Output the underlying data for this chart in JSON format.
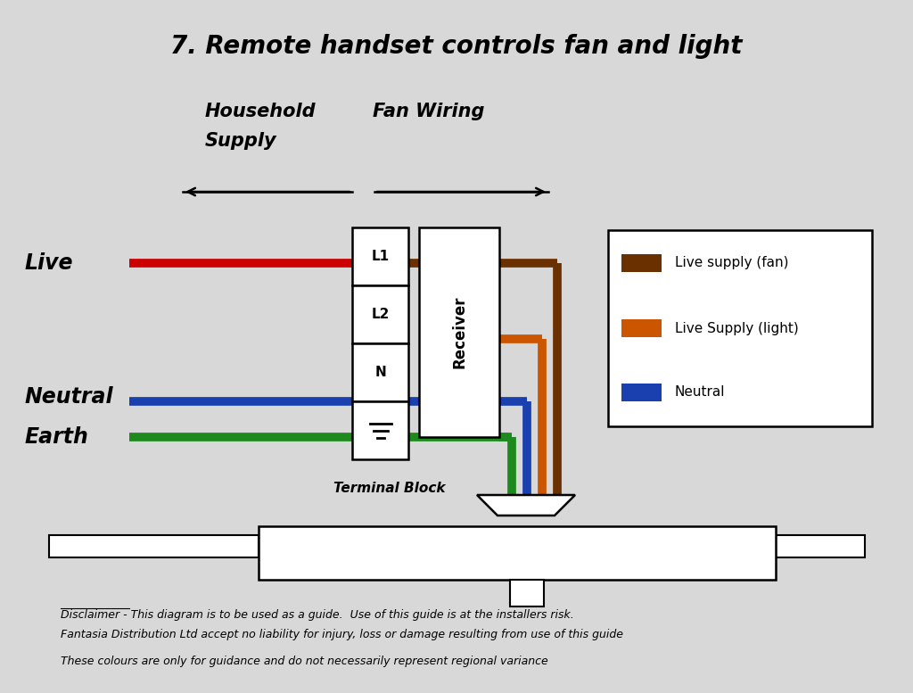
{
  "title": "7. Remote handset controls fan and light",
  "bg_color": "#d8d8d8",
  "title_fontsize": 20,
  "wire_colors": {
    "live_red": "#cc0000",
    "neutral_blue": "#1a40b0",
    "earth_green": "#1e8a1e",
    "brown": "#6b3000",
    "orange": "#cc5500",
    "blue_out": "#1a40b0",
    "green_out": "#1e8a1e"
  },
  "labels": {
    "live": "Live",
    "neutral": "Neutral",
    "earth": "Earth",
    "terminal": "Terminal Block",
    "receiver": "Receiver",
    "household_line1": "Household   Fan Wiring",
    "household_line2": "Supply",
    "disclaimer1": "Disclaimer - This diagram is to be used as a guide.  Use of this guide is at the installers risk.",
    "disclaimer2": "Fantasia Distribution Ltd accept no liability for injury, loss or damage resulting from use of this guide",
    "disclaimer3": "These colours are only for guidance and do not necessarily represent regional variance"
  },
  "legend_items": [
    {
      "label": "Live supply (fan)",
      "color": "#6b3000"
    },
    {
      "label": "Live Supply (light)",
      "color": "#cc5500"
    },
    {
      "label": "Neutral",
      "color": "#1a40b0"
    }
  ]
}
